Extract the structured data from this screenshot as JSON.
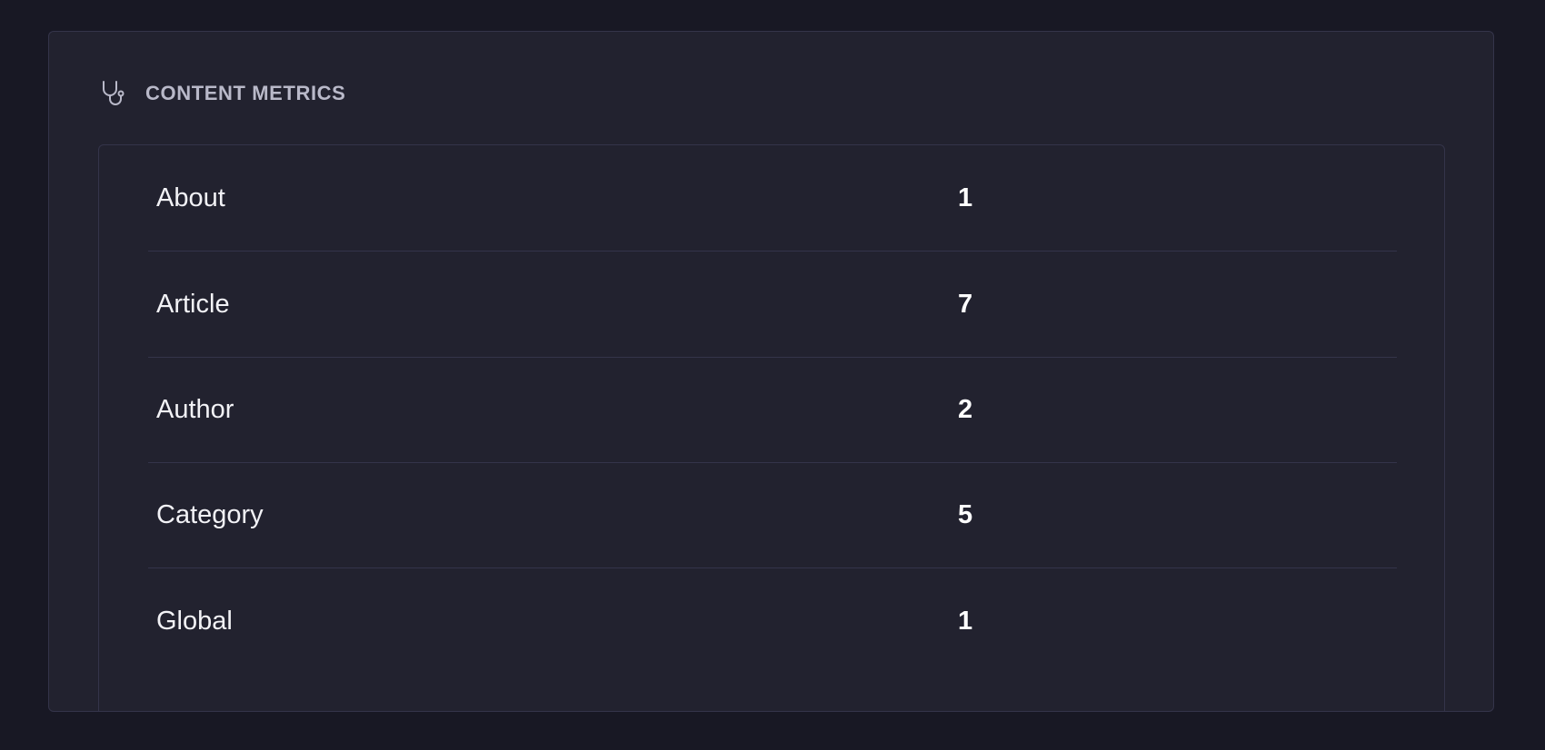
{
  "panel": {
    "title": "CONTENT METRICS",
    "icon": "stethoscope-icon",
    "rows": [
      {
        "label": "About",
        "value": "1"
      },
      {
        "label": "Article",
        "value": "7"
      },
      {
        "label": "Author",
        "value": "2"
      },
      {
        "label": "Category",
        "value": "5"
      },
      {
        "label": "Global",
        "value": "1"
      }
    ]
  }
}
